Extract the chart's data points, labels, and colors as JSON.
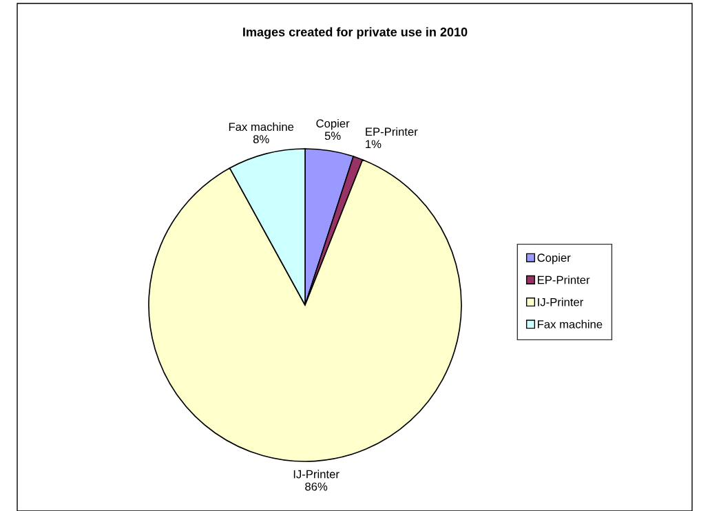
{
  "chart_data": {
    "type": "pie",
    "title": "Images created for private use in 2010",
    "categories": [
      "Copier",
      "EP-Printer",
      "IJ-Printer",
      "Fax machine"
    ],
    "values": [
      5,
      1,
      86,
      8
    ],
    "value_labels": [
      "5%",
      "1%",
      "86%",
      "8%"
    ],
    "colors": [
      "#9999ff",
      "#993366",
      "#ffffcc",
      "#ccffff"
    ],
    "legend": "right"
  }
}
